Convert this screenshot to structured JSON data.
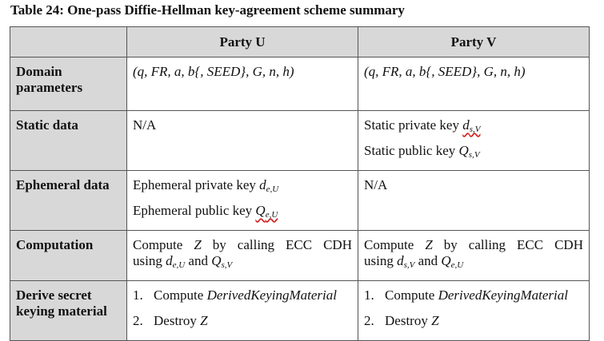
{
  "caption": "Table 24: One-pass Diffie-Hellman key-agreement scheme summary",
  "header": {
    "corner": "",
    "party_u": "Party U",
    "party_v": "Party V"
  },
  "rows": {
    "domain": {
      "label": "Domain parameters",
      "u": "(q, FR, a, b{, SEED}, G, n, h)",
      "v": "(q, FR, a, b{, SEED}, G, n, h)"
    },
    "static": {
      "label": "Static data",
      "u": "N/A",
      "v_line1_text": "Static private key ",
      "v_line1_var": "d",
      "v_line1_sub": "s,V",
      "v_line2_text": "Static public key ",
      "v_line2_var": "Q",
      "v_line2_sub": "s,V"
    },
    "ephemeral": {
      "label": "Ephemeral data",
      "u_line1_text": "Ephemeral private key ",
      "u_line1_var": "d",
      "u_line1_sub": "e,U",
      "u_line2_text": "Ephemeral public key ",
      "u_line2_var": "Q",
      "u_line2_sub": "e,U",
      "v": "N/A"
    },
    "computation": {
      "label": "Computation",
      "line1_a": "Compute ",
      "line1_var": "Z",
      "line1_b": " by calling ECC CDH",
      "line2_a": "using ",
      "u_var1": "d",
      "u_sub1": "e,U",
      "and": " and ",
      "u_var2": "Q",
      "u_sub2": "s,V",
      "v_var1": "d",
      "v_sub1": "s,V",
      "v_var2": "Q",
      "v_sub2": "e,U"
    },
    "derive": {
      "label": "Derive secret keying material",
      "step1_num": "1.",
      "step1_text": "Compute ",
      "step1_var": "DerivedKeyingMaterial",
      "step2_num": "2.",
      "step2_text": "Destroy ",
      "step2_var": "Z"
    }
  }
}
